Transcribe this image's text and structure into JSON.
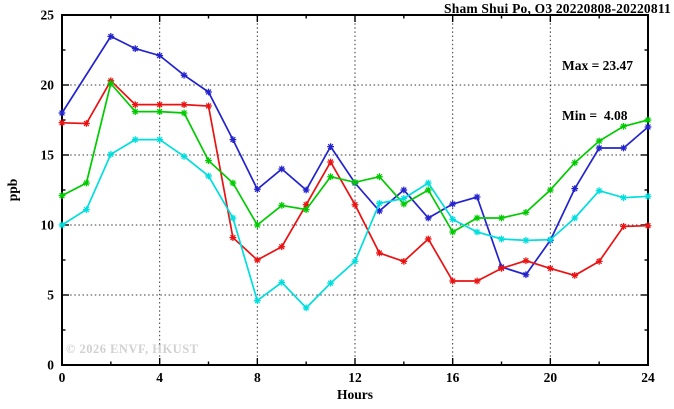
{
  "title": "Sham Shui Po, O3 20220808-20220811",
  "stats": {
    "max_label": "Max = 23.47",
    "min_label": "Min =  4.08"
  },
  "watermark": "© 2026 ENVF, HKUST",
  "chart_data": {
    "type": "line",
    "title": "Sham Shui Po, O3 20220808-20220811",
    "xlabel": "Hours",
    "ylabel": "ppb",
    "xlim": [
      0,
      24
    ],
    "ylim": [
      0,
      25
    ],
    "x_major_ticks": [
      0,
      4,
      8,
      12,
      16,
      20,
      24
    ],
    "x_minor_ticks": [
      2,
      6,
      10,
      14,
      18,
      22
    ],
    "y_major_ticks": [
      0,
      5,
      10,
      15,
      20,
      25
    ],
    "y_minor_ticks": [
      2.5,
      7.5,
      12.5,
      17.5,
      22.5
    ],
    "grid_x": [
      4,
      8,
      12,
      16,
      20
    ],
    "grid_y": [
      5,
      10,
      15,
      20
    ],
    "grid_style": "dotted",
    "legend_position": "none",
    "marker": "asterisk",
    "x": [
      0,
      1,
      2,
      3,
      4,
      5,
      6,
      7,
      8,
      9,
      10,
      11,
      12,
      13,
      14,
      15,
      16,
      17,
      18,
      19,
      20,
      21,
      22,
      23,
      24
    ],
    "series": [
      {
        "name": "series-blue",
        "color": "#2323cd",
        "values": [
          18.0,
          null,
          23.47,
          22.6,
          22.1,
          20.7,
          19.5,
          16.1,
          12.55,
          14.0,
          12.5,
          15.6,
          13.0,
          11.0,
          12.5,
          10.5,
          11.5,
          12.0,
          7.0,
          6.45,
          8.9,
          12.6,
          15.5,
          15.5,
          17.0
        ]
      },
      {
        "name": "series-red",
        "color": "#ea1212",
        "values": [
          17.3,
          17.25,
          20.3,
          18.6,
          18.6,
          18.6,
          18.5,
          9.1,
          7.5,
          8.45,
          11.45,
          14.5,
          11.45,
          8.0,
          7.4,
          9.0,
          6.0,
          6.0,
          6.9,
          7.45,
          6.9,
          6.4,
          7.4,
          9.9,
          9.95
        ]
      },
      {
        "name": "series-green",
        "color": "#00cb00",
        "values": [
          12.1,
          13.0,
          20.1,
          18.1,
          18.1,
          18.0,
          14.6,
          13.0,
          10.0,
          11.4,
          11.1,
          13.45,
          13.05,
          13.45,
          11.5,
          12.5,
          9.5,
          10.5,
          10.5,
          10.9,
          12.5,
          14.45,
          16.0,
          17.05,
          17.5
        ]
      },
      {
        "name": "series-cyan",
        "color": "#00dede",
        "values": [
          10.0,
          11.1,
          15.05,
          16.1,
          16.1,
          14.9,
          13.5,
          10.5,
          4.6,
          5.9,
          4.08,
          5.85,
          7.4,
          11.55,
          11.9,
          13.0,
          10.4,
          9.5,
          9.0,
          8.9,
          8.95,
          10.5,
          12.45,
          11.95,
          12.05
        ]
      }
    ],
    "max": 23.47,
    "min": 4.08
  }
}
